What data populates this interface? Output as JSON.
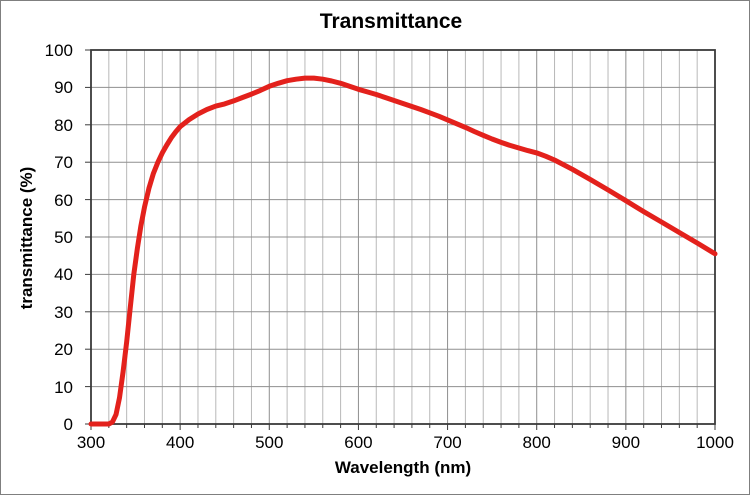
{
  "chart_data": {
    "type": "line",
    "title": "Transmittance",
    "xlabel": "Wavelength (nm)",
    "ylabel": "transmittance (%)",
    "xlim": [
      300,
      1000
    ],
    "ylim": [
      0,
      100
    ],
    "x_major_ticks": [
      300,
      400,
      500,
      600,
      700,
      800,
      900,
      1000
    ],
    "x_minor_step": 20,
    "y_major_ticks": [
      0,
      10,
      20,
      30,
      40,
      50,
      60,
      70,
      80,
      90,
      100
    ],
    "grid": {
      "x_minor": true,
      "x_major": true,
      "y_major": true,
      "y_minor": false
    },
    "legend": "none",
    "series": [
      {
        "name": "transmittance",
        "color": "#e3211c",
        "points": [
          [
            300,
            0
          ],
          [
            310,
            0
          ],
          [
            320,
            0
          ],
          [
            324,
            0.5
          ],
          [
            328,
            2.5
          ],
          [
            332,
            7
          ],
          [
            336,
            14
          ],
          [
            340,
            22
          ],
          [
            344,
            31
          ],
          [
            348,
            40
          ],
          [
            352,
            47
          ],
          [
            356,
            53
          ],
          [
            360,
            58
          ],
          [
            365,
            63
          ],
          [
            370,
            67
          ],
          [
            375,
            70
          ],
          [
            380,
            72.5
          ],
          [
            385,
            74.6
          ],
          [
            390,
            76.5
          ],
          [
            395,
            78.1
          ],
          [
            400,
            79.5
          ],
          [
            410,
            81.4
          ],
          [
            420,
            82.9
          ],
          [
            430,
            84.1
          ],
          [
            440,
            85
          ],
          [
            450,
            85.6
          ],
          [
            460,
            86.4
          ],
          [
            470,
            87.3
          ],
          [
            480,
            88.2
          ],
          [
            490,
            89.2
          ],
          [
            500,
            90.3
          ],
          [
            510,
            91.1
          ],
          [
            520,
            91.8
          ],
          [
            530,
            92.2
          ],
          [
            540,
            92.5
          ],
          [
            550,
            92.5
          ],
          [
            560,
            92.2
          ],
          [
            570,
            91.7
          ],
          [
            580,
            91.1
          ],
          [
            590,
            90.3
          ],
          [
            600,
            89.5
          ],
          [
            610,
            88.8
          ],
          [
            620,
            88.1
          ],
          [
            630,
            87.3
          ],
          [
            640,
            86.5
          ],
          [
            650,
            85.7
          ],
          [
            660,
            84.9
          ],
          [
            670,
            84.1
          ],
          [
            680,
            83.2
          ],
          [
            690,
            82.3
          ],
          [
            700,
            81.3
          ],
          [
            710,
            80.3
          ],
          [
            720,
            79.3
          ],
          [
            730,
            78.2
          ],
          [
            740,
            77.2
          ],
          [
            750,
            76.2
          ],
          [
            760,
            75.3
          ],
          [
            770,
            74.5
          ],
          [
            780,
            73.8
          ],
          [
            790,
            73.1
          ],
          [
            800,
            72.5
          ],
          [
            810,
            71.6
          ],
          [
            820,
            70.6
          ],
          [
            840,
            68.1
          ],
          [
            860,
            65.4
          ],
          [
            880,
            62.6
          ],
          [
            900,
            59.7
          ],
          [
            920,
            56.8
          ],
          [
            940,
            54
          ],
          [
            960,
            51.2
          ],
          [
            980,
            48.4
          ],
          [
            1000,
            45.5
          ]
        ]
      }
    ]
  },
  "colors": {
    "curve": "#e3211c",
    "grid_minor": "#b8b8b8",
    "grid_major": "#8f8f8f",
    "frame": "#3a3a3a",
    "text": "#000000",
    "background": "#ffffff",
    "canvas_border": "#7f7f7f"
  }
}
